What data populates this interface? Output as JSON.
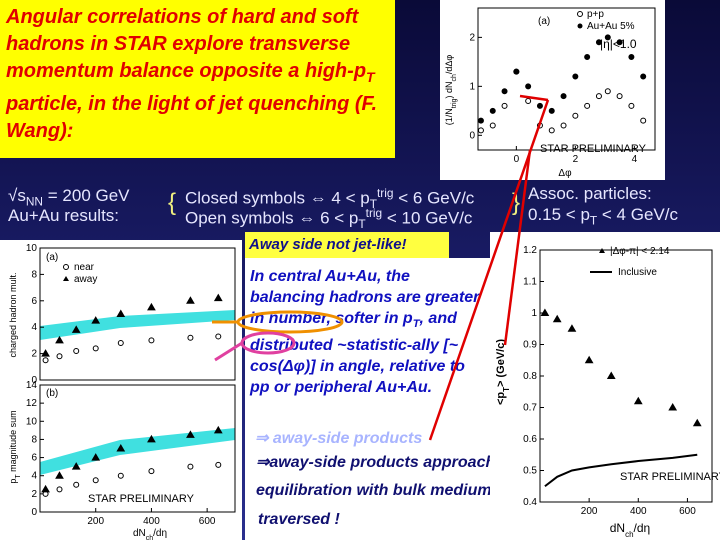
{
  "title": [
    "Angular correlations of hard and soft hadrons in STAR explore transverse momentum balance opposite a high-p",
    "T",
    " particle, in the light of jet quenching (F. Wang):"
  ],
  "conditions": {
    "energy": [
      "√s",
      "NN",
      " = 200 GeV"
    ],
    "system": "Au+Au results:",
    "closed": [
      "Closed symbols ⇔ 4 < p",
      "T",
      "trig",
      " < 6 GeV/c"
    ],
    "open": [
      "Open symbols  ⇔ 6 < p",
      "T",
      "trig",
      " < 10 GeV/c"
    ],
    "assoc_title": "Assoc. particles:",
    "assoc_range": [
      "0.15 < p",
      "T",
      " < 4 GeV/c"
    ]
  },
  "callout": "Away side not jet-like!",
  "explanation": [
    "In central Au+Au, the balancing hadrons are ",
    "greater in number",
    ", softer in p",
    "T",
    ", and distributed ~statistic-ally [~ cos(Δφ)] in angle, relative to pp or peripheral Au+Au."
  ],
  "ghost": "⇒ away-side products",
  "conclusion": [
    "⇒away-side products approach",
    "equilibration with bulk medium",
    "traversed !"
  ],
  "figures": {
    "correlation": {
      "type": "scatter",
      "panel_label": "(a)",
      "cut": "|η|<1.0",
      "ylabel": [
        "(1/N",
        "trig",
        ") dN",
        "ch",
        "/dΔφ"
      ],
      "xlabel": "Δφ",
      "watermark": "STAR PRELIMINARY",
      "xlim": [
        -1.3,
        4.7
      ],
      "ylim": [
        -0.3,
        2.6
      ],
      "xticks": [
        0,
        2,
        4
      ],
      "yticks": [
        0,
        1,
        2
      ],
      "series": [
        {
          "name": "p+p",
          "color": "#000000",
          "marker": "circle-open",
          "x": [
            -1.2,
            -0.8,
            -0.4,
            0,
            0.4,
            0.8,
            1.2,
            1.6,
            2.0,
            2.4,
            2.8,
            3.1,
            3.5,
            3.9,
            4.3
          ],
          "values": [
            0.1,
            0.2,
            0.6,
            1.3,
            0.7,
            0.2,
            0.1,
            0.2,
            0.4,
            0.6,
            0.8,
            0.9,
            0.8,
            0.6,
            0.3
          ]
        },
        {
          "name": "Au+Au 5%",
          "color": "#000000",
          "marker": "circle-filled",
          "x": [
            -1.2,
            -0.8,
            -0.4,
            0,
            0.4,
            0.8,
            1.2,
            1.6,
            2.0,
            2.4,
            2.8,
            3.1,
            3.5,
            3.9,
            4.3
          ],
          "values": [
            0.3,
            0.5,
            0.9,
            1.3,
            1.0,
            0.6,
            0.5,
            0.8,
            1.2,
            1.6,
            1.9,
            2.0,
            1.9,
            1.6,
            1.2
          ]
        }
      ]
    },
    "multiplicity": {
      "type": "scatter",
      "panel_label": "(a)",
      "ylabel": "charged hadron mult.",
      "xlim": [
        0,
        700
      ],
      "ylim": [
        0,
        10
      ],
      "yticks": [
        0,
        2,
        4,
        6,
        8,
        10
      ],
      "series": [
        {
          "name": "near",
          "color": "#000000",
          "marker": "circle-open",
          "x": [
            20,
            70,
            130,
            200,
            290,
            400,
            540,
            640
          ],
          "values": [
            1.5,
            1.8,
            2.2,
            2.4,
            2.8,
            3.0,
            3.2,
            3.3
          ]
        },
        {
          "name": "away",
          "color": "#000000",
          "marker": "triangle-filled",
          "x": [
            20,
            70,
            130,
            200,
            290,
            400,
            540,
            640
          ],
          "values": [
            2.0,
            3.0,
            3.8,
            4.5,
            5.0,
            5.5,
            6.0,
            6.2
          ]
        }
      ]
    },
    "sum": {
      "type": "scatter",
      "panel_label": "(b)",
      "ylabel": [
        "p",
        "T",
        " magnitude sum"
      ],
      "xlabel": [
        "dN",
        "ch",
        "/dη"
      ],
      "watermark": "STAR PRELIMINARY",
      "xlim": [
        0,
        700
      ],
      "ylim": [
        0,
        14
      ],
      "xticks": [
        200,
        400,
        600
      ],
      "yticks": [
        0,
        2,
        4,
        6,
        8,
        10,
        12,
        14
      ],
      "series": [
        {
          "color": "#000000",
          "marker": "circle-open",
          "x": [
            20,
            70,
            130,
            200,
            290,
            400,
            540,
            640
          ],
          "values": [
            2,
            2.5,
            3,
            3.5,
            4,
            4.5,
            5,
            5.2
          ]
        },
        {
          "color": "#000000",
          "marker": "triangle-filled",
          "x": [
            20,
            70,
            130,
            200,
            290,
            400,
            540,
            640
          ],
          "values": [
            2.5,
            4,
            5,
            6,
            7,
            8,
            8.5,
            9
          ]
        }
      ]
    },
    "mean_pt": {
      "type": "scatter",
      "ylabel": [
        "<p",
        "T",
        ">  (GeV/c)"
      ],
      "xlabel": [
        "dN",
        "ch",
        "/dη"
      ],
      "watermark": "STAR PRELIMINARY",
      "xlim": [
        0,
        700
      ],
      "ylim": [
        0.4,
        1.2
      ],
      "xticks": [
        200,
        400,
        600
      ],
      "yticks": [
        0.4,
        0.5,
        0.6,
        0.7,
        0.8,
        0.9,
        1,
        1.1,
        1.2
      ],
      "series": [
        {
          "name": "|Δφ-π| < 2.14",
          "color": "#000000",
          "marker": "triangle-filled",
          "x": [
            20,
            70,
            130,
            200,
            290,
            400,
            540,
            640
          ],
          "values": [
            1.0,
            0.98,
            0.95,
            0.85,
            0.8,
            0.72,
            0.7,
            0.65
          ]
        },
        {
          "name": "Inclusive",
          "color": "#000000",
          "marker": "line",
          "x": [
            20,
            70,
            130,
            200,
            290,
            400,
            540,
            640
          ],
          "values": [
            0.45,
            0.48,
            0.5,
            0.51,
            0.52,
            0.53,
            0.54,
            0.55
          ]
        }
      ]
    }
  }
}
